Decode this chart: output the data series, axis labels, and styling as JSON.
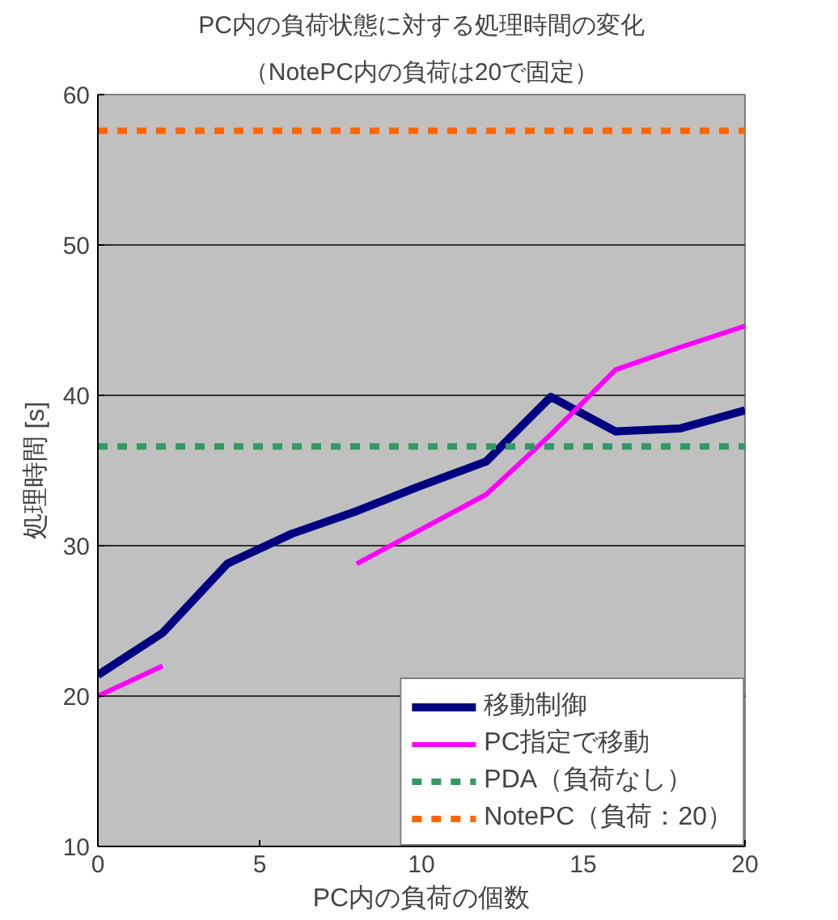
{
  "chart_data": {
    "type": "line",
    "title": "PC内の負荷状態に対する処理時間の変化",
    "subtitle": "（NotePC内の負荷は20で固定）",
    "xlabel": "PC内の負荷の個数",
    "ylabel": "処理時間 [s]",
    "x": [
      0,
      2,
      4,
      6,
      8,
      10,
      12,
      14,
      16,
      18,
      20
    ],
    "series": [
      {
        "name": "移動制御",
        "color": "#000080",
        "values": [
          21.4,
          24.2,
          28.8,
          30.8,
          32.3,
          34.0,
          35.6,
          39.9,
          37.6,
          37.8,
          39.0
        ]
      },
      {
        "name": "PC指定で移動",
        "color": "#ff00ff",
        "values": [
          20.0,
          22.0,
          null,
          null,
          28.8,
          31.1,
          33.4,
          37.4,
          41.7,
          43.2,
          44.6
        ]
      },
      {
        "name": "PDA（負荷なし）",
        "color": "#339966",
        "line_style": "dashed",
        "x": [
          0,
          20
        ],
        "values": [
          36.6,
          36.6
        ]
      }
    ],
    "ref_lines": [
      {
        "axis": "y",
        "value": 57.6,
        "label": "NotePC（負荷：20）",
        "color": "#ff6600",
        "line_style": "dashed"
      }
    ],
    "xlim": [
      0,
      20
    ],
    "ylim": [
      10,
      60
    ],
    "xticks": [
      0,
      5,
      10,
      15,
      20
    ],
    "yticks": [
      10,
      20,
      30,
      40,
      50,
      60
    ],
    "grid": "y",
    "legend": "bottom right",
    "marker": "none",
    "line_style": "solid"
  }
}
